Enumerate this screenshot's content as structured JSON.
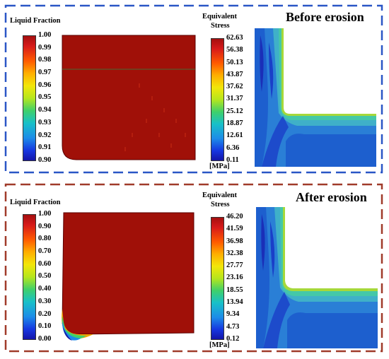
{
  "colors": {
    "frame_top": "#2a56c6",
    "frame_bottom": "#a03b2a",
    "melt_red": "#a01008",
    "stress_light": "#2a7fd6"
  },
  "panels": [
    {
      "title": "Before erosion",
      "liquid_label": "Liquid Fraction",
      "liquid_ticks": [
        "1.00",
        "0.99",
        "0.98",
        "0.97",
        "0.96",
        "0.95",
        "0.94",
        "0.93",
        "0.92",
        "0.91",
        "0.90"
      ],
      "stress_label_1": "Equivalent",
      "stress_label_2": "Stress",
      "stress_ticks": [
        "62.63",
        "56.38",
        "50.13",
        "43.87",
        "37.62",
        "31.37",
        "25.12",
        "18.87",
        "12.61",
        "6.36",
        "0.11"
      ],
      "unit": "[MPa]"
    },
    {
      "title": "After erosion",
      "liquid_label": "Liquid Fraction",
      "liquid_ticks": [
        "1.00",
        "0.90",
        "0.80",
        "0.70",
        "0.60",
        "0.50",
        "0.40",
        "0.30",
        "0.20",
        "0.10",
        "0.00"
      ],
      "stress_label_1": "Equivalent",
      "stress_label_2": "Stress",
      "stress_ticks": [
        "46.20",
        "41.59",
        "36.98",
        "32.38",
        "27.77",
        "23.16",
        "18.55",
        "13.94",
        "9.34",
        "4.73",
        "0.12"
      ],
      "unit": "[MPa]"
    }
  ]
}
